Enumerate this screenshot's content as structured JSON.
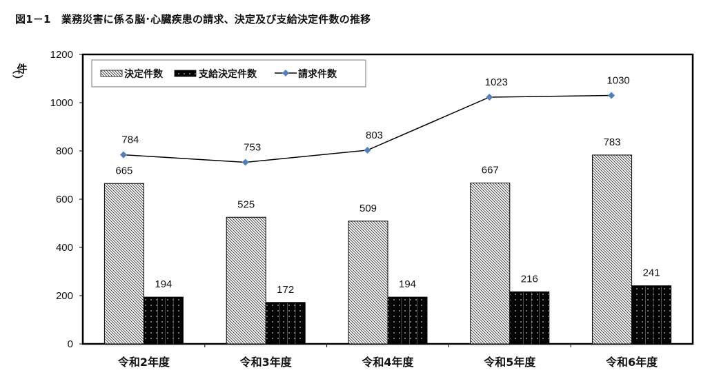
{
  "title": "図1－1　業務災害に係る脳･心臓疾患の請求、決定及び支給決定件数の推移",
  "chart_data": {
    "type": "bar",
    "title": "図1－1　業務災害に係る脳･心臓疾患の請求、決定及び支給決定件数の推移",
    "xlabel": "",
    "ylabel": "（件）",
    "ylim": [
      0,
      1200
    ],
    "yticks": [
      0,
      200,
      400,
      600,
      800,
      1000,
      1200
    ],
    "grid": false,
    "legend_position": "top-left inside",
    "categories": [
      "令和2年度",
      "令和3年度",
      "令和4年度",
      "令和5年度",
      "令和6年度"
    ],
    "series": [
      {
        "name": "決定件数",
        "type": "bar",
        "pattern": "diagonal-hatch",
        "values": [
          665,
          525,
          509,
          667,
          783
        ]
      },
      {
        "name": "支給決定件数",
        "type": "bar",
        "pattern": "black-dotted",
        "values": [
          194,
          172,
          194,
          216,
          241
        ]
      },
      {
        "name": "請求件数",
        "type": "line",
        "color": "#4f81bd",
        "marker": "diamond",
        "values": [
          784,
          753,
          803,
          1023,
          1030
        ]
      }
    ]
  }
}
